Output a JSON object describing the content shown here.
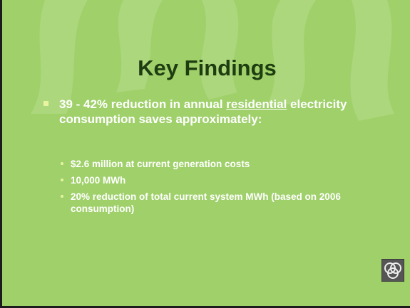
{
  "slide": {
    "title": "Key Findings",
    "bullet": {
      "before": "39 - 42% reduction in annual ",
      "underlined": "residential",
      "after": " electricity consumption saves approximately:"
    },
    "sub_bullets": [
      "$2.6 million at current generation costs",
      "10,000 MWh",
      "20% reduction of total current system MWh (based on 2006 consumption)"
    ]
  }
}
